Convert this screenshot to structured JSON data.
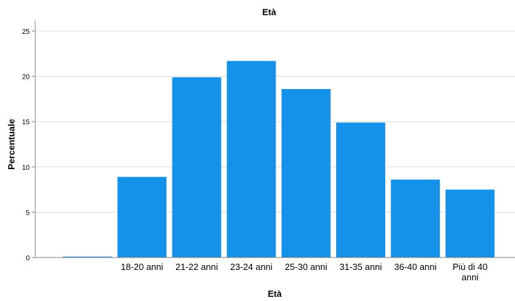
{
  "chart_data": {
    "type": "bar",
    "title": "Età",
    "xlabel": "Età",
    "ylabel": "Percentuale",
    "ylim": [
      0,
      25
    ],
    "yticks": [
      "0",
      "5",
      "10",
      "15",
      "20",
      "25"
    ],
    "grid": true,
    "categories": [
      {
        "line1": "",
        "line2": ""
      },
      {
        "line1": "18-20 anni",
        "line2": ""
      },
      {
        "line1": "21-22 anni",
        "line2": ""
      },
      {
        "line1": "23-24 anni",
        "line2": ""
      },
      {
        "line1": "25-30 anni",
        "line2": ""
      },
      {
        "line1": "31-35 anni",
        "line2": ""
      },
      {
        "line1": "36-40 anni",
        "line2": ""
      },
      {
        "line1": "Più di 40",
        "line2": "anni"
      }
    ],
    "values": [
      0.1,
      8.9,
      19.9,
      21.7,
      18.6,
      14.9,
      8.6,
      7.5
    ],
    "colors": {
      "bar": "#1491e8",
      "grid": "#d9d9d9",
      "axis": "#808080"
    }
  }
}
